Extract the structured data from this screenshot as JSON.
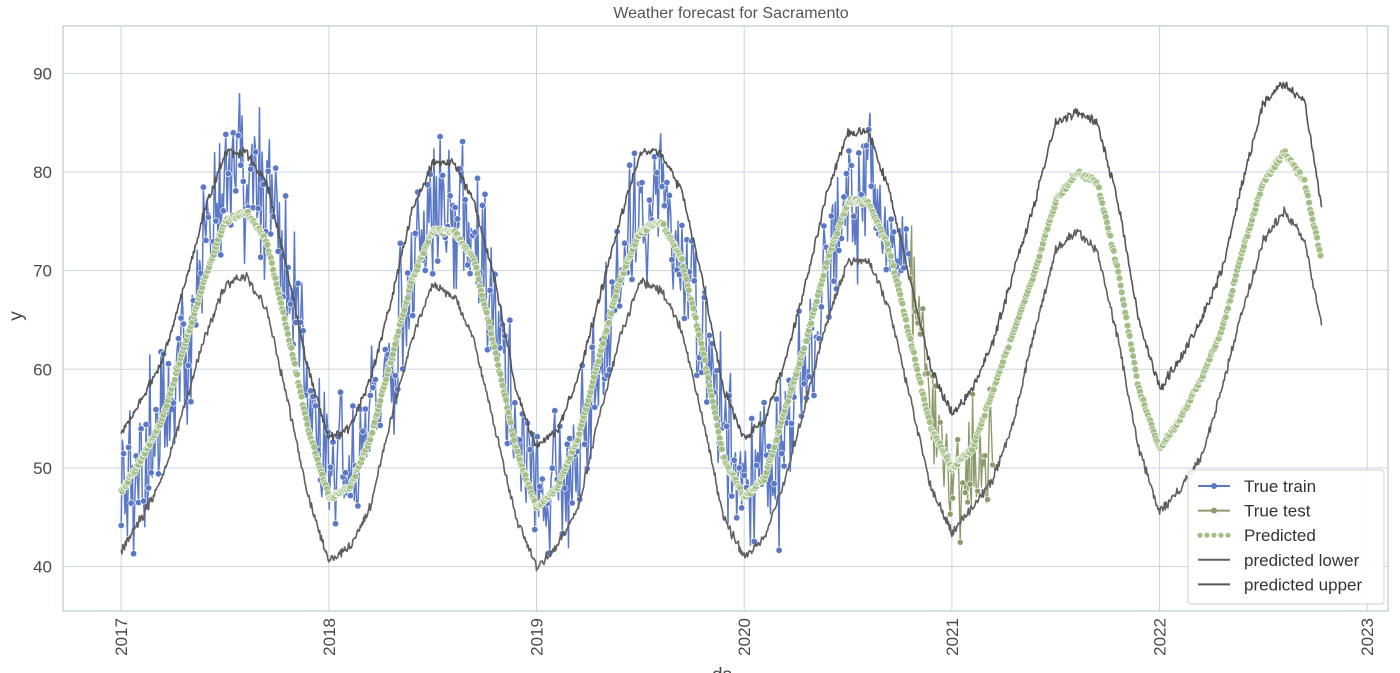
{
  "chart_data": {
    "type": "line",
    "title": "Weather forecast for Sacramento",
    "xlabel": "ds",
    "ylabel": "y",
    "xlim": [
      2016.72,
      2023.1
    ],
    "ylim": [
      35.5,
      94.8
    ],
    "x_ticks": [
      "2017",
      "2018",
      "2019",
      "2020",
      "2021",
      "2022",
      "2023"
    ],
    "y_ticks": [
      "40",
      "50",
      "60",
      "70",
      "80",
      "90"
    ],
    "grid": true,
    "legend_position": "lower-right",
    "colors": {
      "true_train": "#5a78c6",
      "true_test": "#8c9b6b",
      "predicted": "#a3bf86",
      "lower": "#606060",
      "upper": "#555555",
      "grid": "#c9d6de",
      "frame": "#b9cbd3"
    },
    "series": [
      {
        "name": "True train",
        "x": [
          2017.0,
          2017.1,
          2017.2,
          2017.3,
          2017.4,
          2017.5,
          2017.6,
          2017.7,
          2017.8,
          2017.9,
          2018.0,
          2018.1,
          2018.2,
          2018.3,
          2018.4,
          2018.5,
          2018.6,
          2018.7,
          2018.8,
          2018.9,
          2019.0,
          2019.1,
          2019.2,
          2019.3,
          2019.4,
          2019.5,
          2019.6,
          2019.7,
          2019.8,
          2019.9,
          2020.0,
          2020.1,
          2020.2,
          2020.3,
          2020.4,
          2020.5,
          2020.6,
          2020.7,
          2020.8
        ],
        "values": [
          47,
          51,
          55,
          62,
          70,
          79,
          80,
          78,
          70,
          58,
          49,
          49,
          53,
          61,
          70,
          76,
          77,
          73,
          65,
          55,
          48,
          48,
          52,
          60,
          69,
          76,
          76,
          72,
          64,
          54,
          47,
          48,
          53,
          61,
          71,
          77,
          80,
          75,
          68
        ]
      },
      {
        "name": "True test",
        "x": [
          2020.8,
          2020.85,
          2020.9,
          2020.95,
          2021.0,
          2021.05,
          2021.1,
          2021.15,
          2021.2
        ],
        "values": [
          70,
          63,
          57,
          52,
          49,
          49,
          50,
          51,
          52
        ]
      },
      {
        "name": "Predicted",
        "x": [
          2017.0,
          2017.1,
          2017.2,
          2017.3,
          2017.4,
          2017.5,
          2017.6,
          2017.7,
          2017.8,
          2017.9,
          2018.0,
          2018.1,
          2018.2,
          2018.3,
          2018.4,
          2018.5,
          2018.6,
          2018.7,
          2018.8,
          2018.9,
          2019.0,
          2019.1,
          2019.2,
          2019.3,
          2019.4,
          2019.5,
          2019.6,
          2019.7,
          2019.8,
          2019.9,
          2020.0,
          2020.1,
          2020.2,
          2020.3,
          2020.4,
          2020.5,
          2020.6,
          2020.7,
          2020.8,
          2020.9,
          2021.0,
          2021.1,
          2021.2,
          2021.3,
          2021.4,
          2021.5,
          2021.6,
          2021.7,
          2021.8,
          2021.9,
          2022.0,
          2022.1,
          2022.2,
          2022.3,
          2022.4,
          2022.5,
          2022.6,
          2022.7,
          2022.78
        ],
        "values": [
          47.5,
          51,
          55,
          62,
          69,
          75,
          76,
          73,
          64,
          54,
          47,
          48,
          53,
          61,
          69,
          74,
          74,
          71,
          62,
          52,
          46,
          48,
          53,
          61,
          69,
          74,
          75,
          71,
          62,
          51,
          47,
          49,
          56,
          63,
          71,
          77,
          77,
          72,
          63,
          54,
          50,
          52,
          58,
          64,
          70,
          77,
          80,
          79,
          70,
          58,
          52,
          55,
          59,
          64,
          72,
          79,
          82,
          79,
          71
        ]
      },
      {
        "name": "predicted lower",
        "x": [
          2017.0,
          2017.1,
          2017.2,
          2017.3,
          2017.4,
          2017.5,
          2017.6,
          2017.7,
          2017.8,
          2017.9,
          2018.0,
          2018.1,
          2018.2,
          2018.3,
          2018.4,
          2018.5,
          2018.6,
          2018.7,
          2018.8,
          2018.9,
          2019.0,
          2019.1,
          2019.2,
          2019.3,
          2019.4,
          2019.5,
          2019.6,
          2019.7,
          2019.8,
          2019.9,
          2020.0,
          2020.1,
          2020.2,
          2020.3,
          2020.4,
          2020.5,
          2020.6,
          2020.7,
          2020.8,
          2020.9,
          2021.0,
          2021.1,
          2021.2,
          2021.3,
          2021.4,
          2021.5,
          2021.6,
          2021.7,
          2021.8,
          2021.9,
          2022.0,
          2022.1,
          2022.2,
          2022.3,
          2022.4,
          2022.5,
          2022.6,
          2022.7,
          2022.78
        ],
        "values": [
          41.5,
          45,
          49,
          56,
          63,
          68.5,
          69.5,
          66,
          57,
          47,
          40.5,
          42,
          46,
          55,
          63,
          68.5,
          67.5,
          63,
          54,
          45,
          40,
          42,
          46,
          55,
          63,
          69,
          68,
          64,
          55,
          45,
          41,
          43,
          49,
          57,
          65,
          71,
          71,
          66,
          57,
          48,
          43.5,
          46,
          49,
          55,
          64,
          72,
          74,
          72,
          63,
          52,
          45.5,
          48,
          51,
          58,
          66,
          73,
          76,
          73,
          64.5
        ]
      },
      {
        "name": "predicted upper",
        "x": [
          2017.0,
          2017.1,
          2017.2,
          2017.3,
          2017.4,
          2017.5,
          2017.6,
          2017.7,
          2017.8,
          2017.9,
          2018.0,
          2018.1,
          2018.2,
          2018.3,
          2018.4,
          2018.5,
          2018.6,
          2018.7,
          2018.8,
          2018.9,
          2019.0,
          2019.1,
          2019.2,
          2019.3,
          2019.4,
          2019.5,
          2019.6,
          2019.7,
          2019.8,
          2019.9,
          2020.0,
          2020.1,
          2020.2,
          2020.3,
          2020.4,
          2020.5,
          2020.6,
          2020.7,
          2020.8,
          2020.9,
          2021.0,
          2021.1,
          2021.2,
          2021.3,
          2021.4,
          2021.5,
          2021.6,
          2021.7,
          2021.8,
          2021.9,
          2022.0,
          2022.1,
          2022.2,
          2022.3,
          2022.4,
          2022.5,
          2022.6,
          2022.7,
          2022.78
        ],
        "values": [
          53.5,
          57,
          61,
          68,
          76,
          82,
          82,
          79,
          70,
          60,
          53,
          54,
          59,
          67,
          76,
          81,
          81,
          77,
          69,
          58,
          52,
          54,
          59,
          67,
          75,
          82,
          82,
          78,
          69,
          58,
          53,
          55,
          61,
          69,
          78,
          84,
          84,
          78,
          69,
          60,
          55.5,
          58,
          63,
          70,
          77,
          85,
          86,
          85,
          77,
          65,
          58,
          61,
          65,
          70,
          79,
          87,
          89,
          87,
          76.5
        ]
      }
    ]
  }
}
